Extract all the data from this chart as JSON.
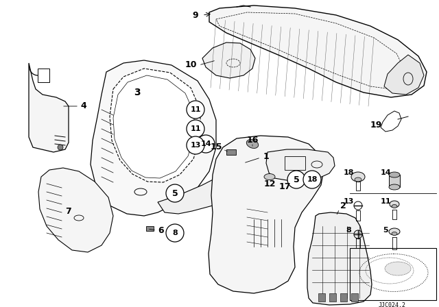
{
  "bg_color": "#ffffff",
  "line_color": "#000000",
  "text_color": "#000000",
  "diagram_code": "JJC024.2",
  "figsize": [
    6.4,
    4.48
  ],
  "dpi": 100
}
